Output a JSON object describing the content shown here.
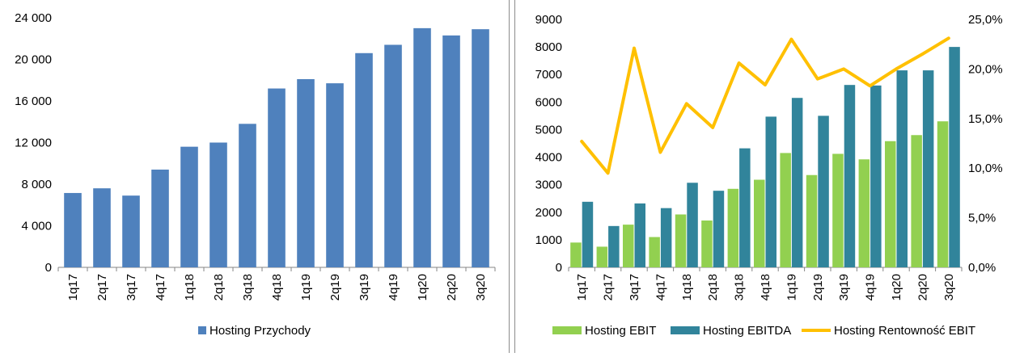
{
  "chart_data": [
    {
      "type": "bar",
      "categories": [
        "1q17",
        "2q17",
        "3q17",
        "4q17",
        "1q18",
        "2q18",
        "3q18",
        "4q18",
        "1q19",
        "2q19",
        "3q19",
        "4q19",
        "1q20",
        "2q20",
        "3q20"
      ],
      "series": [
        {
          "name": "Hosting Przychody",
          "values": [
            7150,
            7600,
            6900,
            9400,
            11600,
            12000,
            13800,
            17200,
            18100,
            17700,
            20600,
            21400,
            23000,
            22300,
            22900
          ]
        }
      ],
      "ylim": [
        0,
        24000
      ],
      "yticks": [
        "0",
        "4 000",
        "8 000",
        "12 000",
        "16 000",
        "20 000",
        "24 000"
      ],
      "ytick_values": [
        0,
        4000,
        8000,
        12000,
        16000,
        20000,
        24000
      ],
      "legend": "bottom",
      "colors": {
        "Hosting Przychody": "#4f81bd"
      }
    },
    {
      "type": "bar",
      "categories": [
        "1q17",
        "2q17",
        "3q17",
        "4q17",
        "1q18",
        "2q18",
        "3q18",
        "4q18",
        "1q19",
        "2q19",
        "3q19",
        "4q19",
        "1q20",
        "2q20",
        "3q20"
      ],
      "series": [
        {
          "name": "Hosting EBIT",
          "values": [
            900,
            750,
            1550,
            1100,
            1920,
            1700,
            2850,
            3180,
            4150,
            3350,
            4120,
            3920,
            4580,
            4800,
            5300
          ]
        },
        {
          "name": "Hosting EBITDA",
          "values": [
            2380,
            1500,
            2320,
            2150,
            3070,
            2780,
            4320,
            5470,
            6150,
            5500,
            6620,
            6600,
            7150,
            7150,
            8000
          ]
        }
      ],
      "line_series": [
        {
          "name": "Hosting Rentowność EBIT",
          "axis": "right",
          "values": [
            12.7,
            9.5,
            22.1,
            11.6,
            16.5,
            14.1,
            20.6,
            18.4,
            23.0,
            19.0,
            20.0,
            18.3,
            20.0,
            21.5,
            23.1
          ]
        }
      ],
      "ylim": [
        0,
        9000
      ],
      "yticks": [
        "0",
        "1000",
        "2000",
        "3000",
        "4000",
        "5000",
        "6000",
        "7000",
        "8000",
        "9000"
      ],
      "ytick_values": [
        0,
        1000,
        2000,
        3000,
        4000,
        5000,
        6000,
        7000,
        8000,
        9000
      ],
      "y2lim": [
        0,
        25
      ],
      "y2ticks": [
        "0,0%",
        "5,0%",
        "10,0%",
        "15,0%",
        "20,0%",
        "25,0%"
      ],
      "y2tick_values": [
        0,
        5,
        10,
        15,
        20,
        25
      ],
      "legend": "bottom",
      "colors": {
        "Hosting EBIT": "#92d050",
        "Hosting EBITDA": "#31849b",
        "Hosting Rentowność EBIT": "#ffc000"
      }
    }
  ]
}
